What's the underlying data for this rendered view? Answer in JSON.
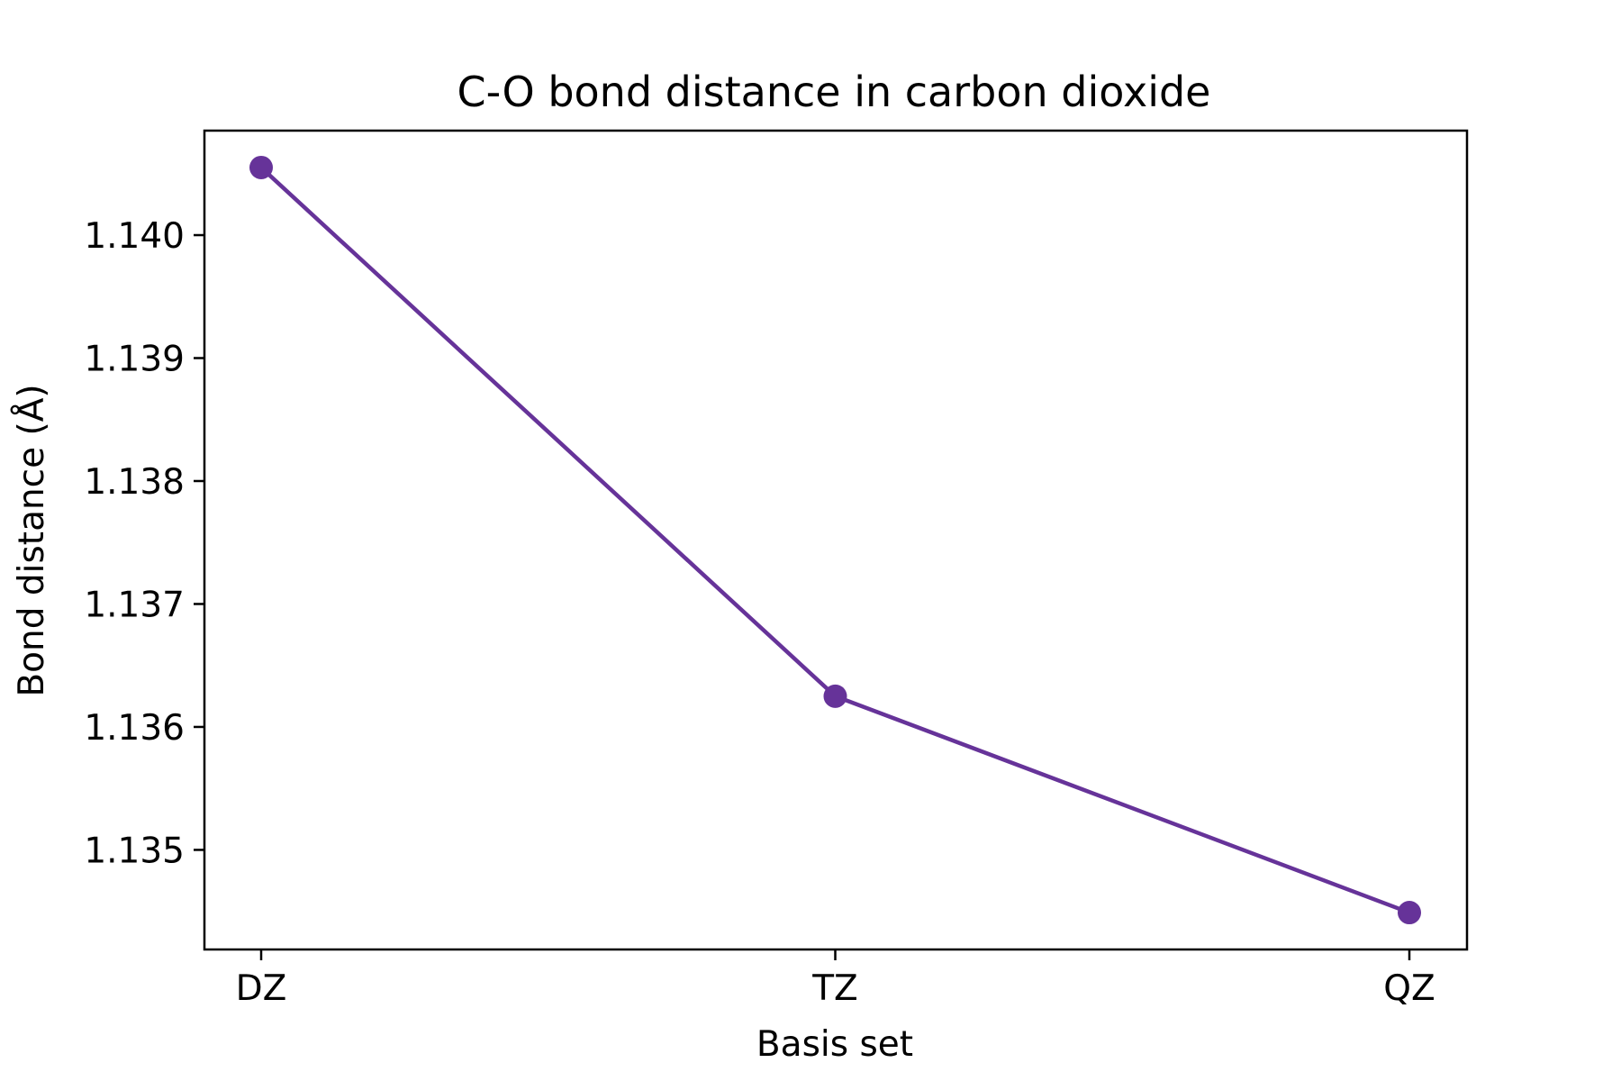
{
  "chart_data": {
    "type": "line",
    "title": "C-O bond distance in carbon dioxide",
    "xlabel": "Basis set",
    "ylabel": "Bond distance (Å)",
    "categories": [
      "DZ",
      "TZ",
      "QZ"
    ],
    "series": [
      {
        "values": [
          1.14055,
          1.13625,
          1.13449
        ]
      }
    ],
    "ylim": [
      1.13419,
      1.14085
    ],
    "yticks": [
      "1.135",
      "1.136",
      "1.137",
      "1.138",
      "1.139",
      "1.140"
    ],
    "grid": false,
    "legend": "none",
    "colors": {
      "series": "#663399",
      "axes": "#000000",
      "background": "#ffffff"
    },
    "marker": "circle"
  }
}
